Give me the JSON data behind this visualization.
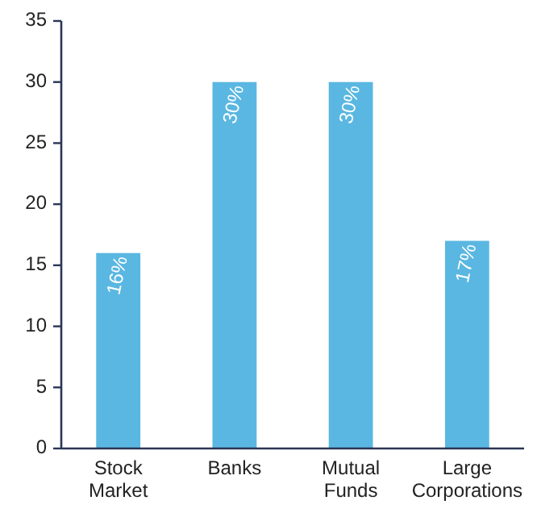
{
  "chart_data": {
    "type": "bar",
    "categories": [
      "Stock Market",
      "Banks",
      "Mutual Funds",
      "Large Corporations"
    ],
    "values": [
      16,
      30,
      30,
      17
    ],
    "value_labels": [
      "16%",
      "30%",
      "30%",
      "17%"
    ],
    "color": "#5ab7e1",
    "ylim": [
      0,
      35
    ],
    "yticks": [
      0,
      5,
      10,
      15,
      20,
      25,
      30,
      35
    ],
    "grid": false
  }
}
